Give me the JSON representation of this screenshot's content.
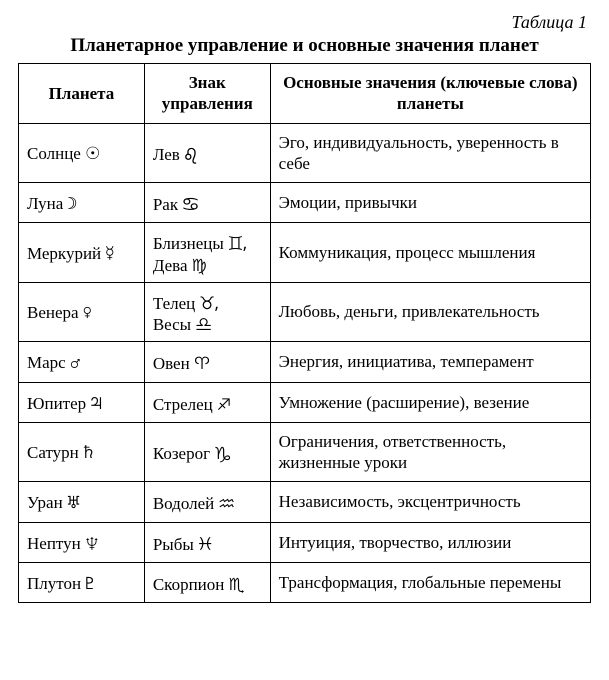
{
  "table_label": "Таблица 1",
  "title": "Планетарное управление и основные значения планет",
  "colors": {
    "background": "#ffffff",
    "text": "#000000",
    "border": "#000000"
  },
  "fonts": {
    "family": "Times New Roman",
    "title_size_pt": 19,
    "body_size_pt": 17,
    "label_size_pt": 18
  },
  "column_widths_pct": [
    22,
    22,
    56
  ],
  "headers": {
    "planet": "Планета",
    "sign": "Знак управления",
    "meaning": "Основные значения (ключевые слова) планеты"
  },
  "rows": [
    {
      "planet_name": "Солнце",
      "planet_symbol": "☉",
      "sign_text": "Лев ♌",
      "meaning": "Эго, индивидуальность, уверенность в себе"
    },
    {
      "planet_name": "Луна",
      "planet_symbol": "☽",
      "sign_text": "Рак ♋",
      "meaning": "Эмоции, привычки"
    },
    {
      "planet_name": "Меркурий",
      "planet_symbol": "☿",
      "sign_text": "Близнецы ♊, Дева ♍",
      "meaning": "Коммуникация, процесс мышления"
    },
    {
      "planet_name": "Венера",
      "planet_symbol": "♀",
      "sign_text": "Телец ♉, Весы ♎",
      "meaning": "Любовь, деньги, привлекательность"
    },
    {
      "planet_name": "Марс",
      "planet_symbol": "♂",
      "sign_text": "Овен ♈",
      "meaning": "Энергия, инициатива, темперамент"
    },
    {
      "planet_name": "Юпитер",
      "planet_symbol": "♃",
      "sign_text": "Стрелец ♐",
      "meaning": "Умножение (расширение), везение"
    },
    {
      "planet_name": "Сатурн",
      "planet_symbol": "♄",
      "sign_text": "Козерог ♑",
      "meaning": "Ограничения, ответственность, жизненные уроки"
    },
    {
      "planet_name": "Уран",
      "planet_symbol": "♅",
      "sign_text": "Водолей ♒",
      "meaning": "Независимость, эксцентричность"
    },
    {
      "planet_name": "Нептун",
      "planet_symbol": "♆",
      "sign_text": "Рыбы ♓",
      "meaning": "Интуиция, творчество, иллюзии"
    },
    {
      "planet_name": "Плутон",
      "planet_symbol": "♇",
      "sign_text": "Скорпион ♏",
      "meaning": "Трансформация, глобальные перемены"
    }
  ]
}
